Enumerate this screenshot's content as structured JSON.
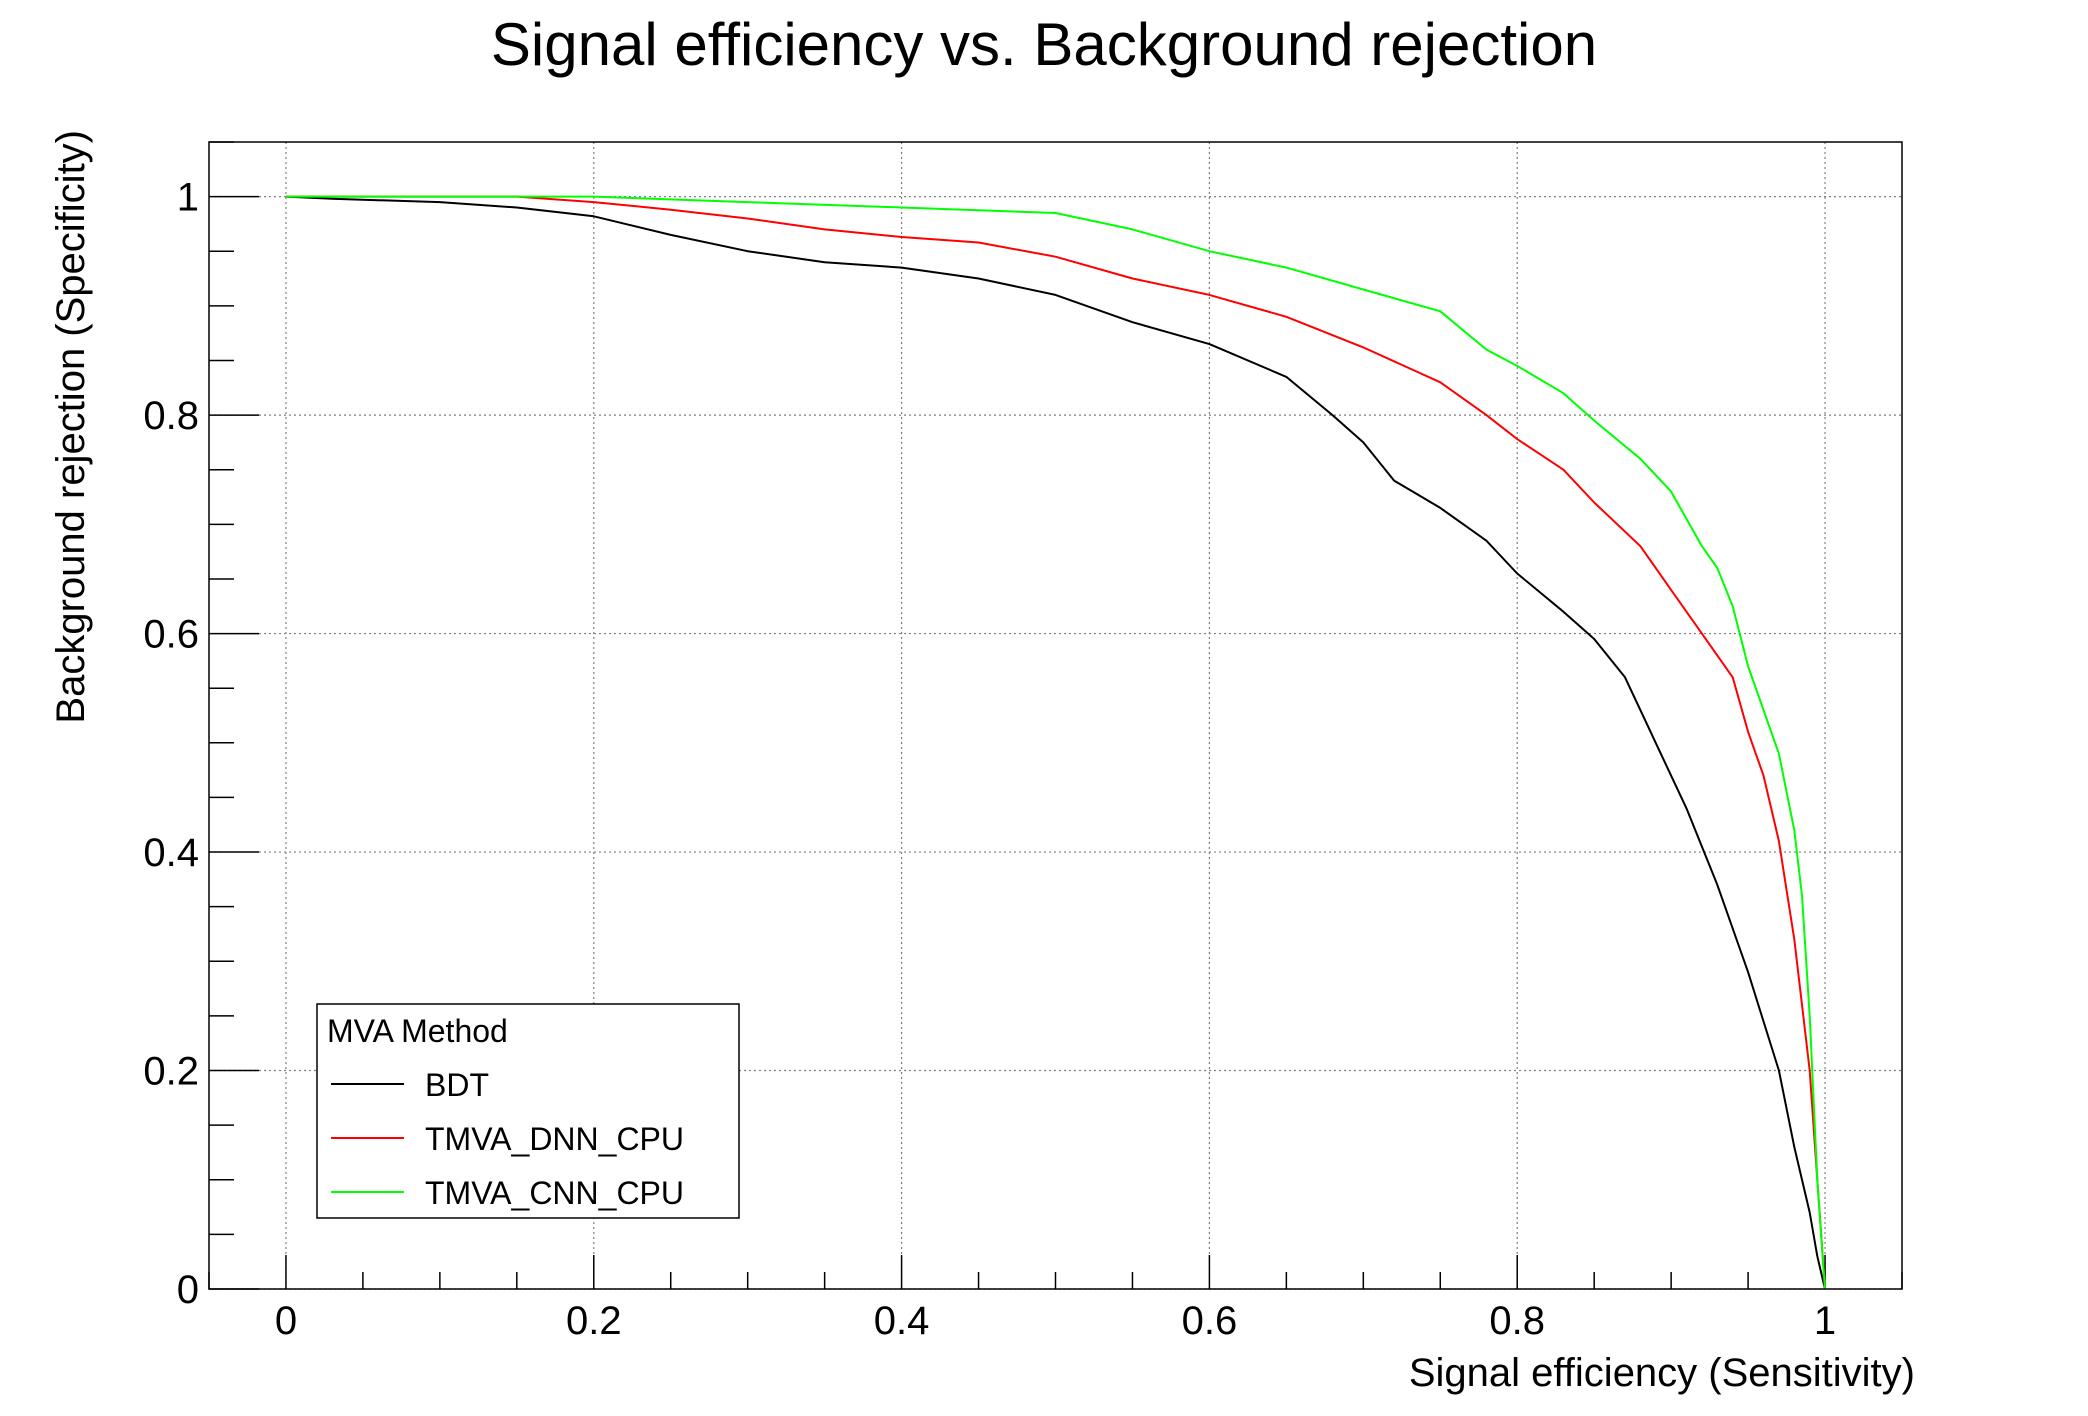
{
  "chart_data": {
    "type": "line",
    "title": "Signal efficiency vs. Background rejection",
    "xlabel": "Signal efficiency (Sensitivity)",
    "ylabel": "Background rejection (Specificity)",
    "xlim": [
      -0.05,
      1.05
    ],
    "ylim": [
      0,
      1.05
    ],
    "xticks": [
      0,
      0.2,
      0.4,
      0.6,
      0.8,
      1
    ],
    "xtick_labels": [
      "0",
      "0.2",
      "0.4",
      "0.6",
      "0.8",
      "1"
    ],
    "yticks": [
      0,
      0.2,
      0.4,
      0.6,
      0.8,
      1
    ],
    "ytick_labels": [
      "0",
      "0.2",
      "0.4",
      "0.6",
      "0.8",
      "1"
    ],
    "grid": true,
    "legend": {
      "title": "MVA Method",
      "position": "bottom-left"
    },
    "series": [
      {
        "name": "BDT",
        "color": "#000000",
        "x": [
          0.0,
          0.03,
          0.1,
          0.15,
          0.2,
          0.25,
          0.3,
          0.35,
          0.4,
          0.45,
          0.5,
          0.55,
          0.6,
          0.65,
          0.68,
          0.7,
          0.72,
          0.75,
          0.78,
          0.8,
          0.83,
          0.85,
          0.87,
          0.89,
          0.91,
          0.93,
          0.95,
          0.97,
          0.98,
          0.99,
          0.995,
          1.0
        ],
        "y": [
          1.0,
          0.998,
          0.995,
          0.99,
          0.982,
          0.965,
          0.95,
          0.94,
          0.935,
          0.925,
          0.91,
          0.885,
          0.865,
          0.835,
          0.8,
          0.775,
          0.74,
          0.715,
          0.685,
          0.655,
          0.62,
          0.595,
          0.56,
          0.5,
          0.44,
          0.37,
          0.29,
          0.2,
          0.13,
          0.07,
          0.03,
          0.0
        ]
      },
      {
        "name": "TMVA_DNN_CPU",
        "color": "#ff0000",
        "x": [
          0.0,
          0.15,
          0.2,
          0.25,
          0.3,
          0.35,
          0.4,
          0.45,
          0.5,
          0.55,
          0.6,
          0.65,
          0.7,
          0.75,
          0.78,
          0.8,
          0.83,
          0.85,
          0.88,
          0.9,
          0.92,
          0.94,
          0.95,
          0.96,
          0.97,
          0.98,
          0.99,
          0.995,
          1.0
        ],
        "y": [
          1.0,
          1.0,
          0.995,
          0.988,
          0.98,
          0.97,
          0.963,
          0.958,
          0.945,
          0.925,
          0.91,
          0.89,
          0.862,
          0.83,
          0.8,
          0.778,
          0.75,
          0.72,
          0.68,
          0.64,
          0.6,
          0.56,
          0.51,
          0.47,
          0.41,
          0.32,
          0.2,
          0.1,
          0.0
        ]
      },
      {
        "name": "TMVA_CNN_CPU",
        "color": "#00ff00",
        "x": [
          0.0,
          0.2,
          0.3,
          0.4,
          0.5,
          0.55,
          0.6,
          0.65,
          0.7,
          0.75,
          0.78,
          0.8,
          0.83,
          0.85,
          0.88,
          0.9,
          0.92,
          0.93,
          0.94,
          0.95,
          0.96,
          0.97,
          0.98,
          0.985,
          0.99,
          0.995,
          1.0
        ],
        "y": [
          1.0,
          1.0,
          0.995,
          0.99,
          0.985,
          0.97,
          0.95,
          0.935,
          0.915,
          0.895,
          0.86,
          0.845,
          0.82,
          0.795,
          0.76,
          0.73,
          0.68,
          0.66,
          0.625,
          0.57,
          0.53,
          0.49,
          0.42,
          0.36,
          0.25,
          0.1,
          0.0
        ]
      }
    ]
  }
}
